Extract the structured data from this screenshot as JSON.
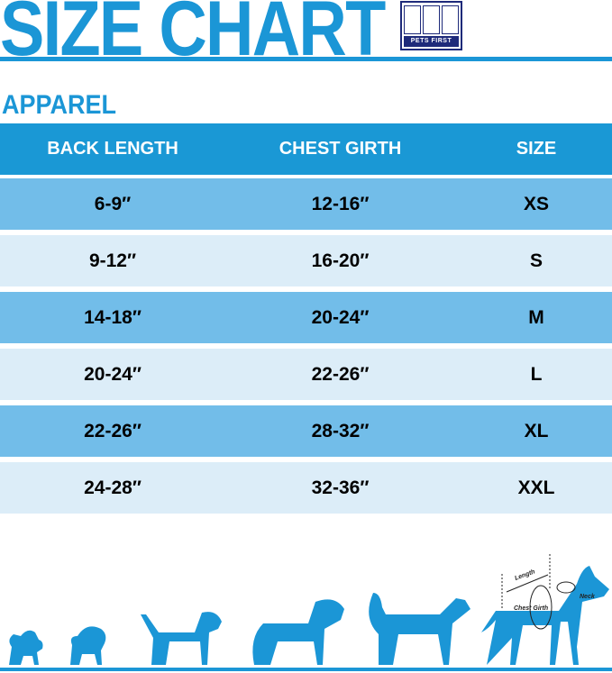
{
  "title": "SIZE CHART",
  "logo": {
    "text": "PETS FIRST"
  },
  "section": "APPAREL",
  "table": {
    "headers": [
      "BACK LENGTH",
      "CHEST GIRTH",
      "SIZE"
    ],
    "rows": [
      [
        "6-9″",
        "12-16″",
        "XS"
      ],
      [
        "9-12″",
        "16-20″",
        "S"
      ],
      [
        "14-18″",
        "20-24″",
        "M"
      ],
      [
        "20-24″",
        "22-26″",
        "L"
      ],
      [
        "22-26″",
        "28-32″",
        "XL"
      ],
      [
        "24-28″",
        "32-36″",
        "XXL"
      ]
    ]
  },
  "diagram": {
    "length": "Length",
    "neck": "Neck",
    "chest": "Chest Girth"
  },
  "colors": {
    "brand": "#1b96d6",
    "header": "#1a98d5",
    "row_dark": "#72bde9",
    "row_light": "#dcedf8",
    "logo": "#1e2a7a"
  }
}
